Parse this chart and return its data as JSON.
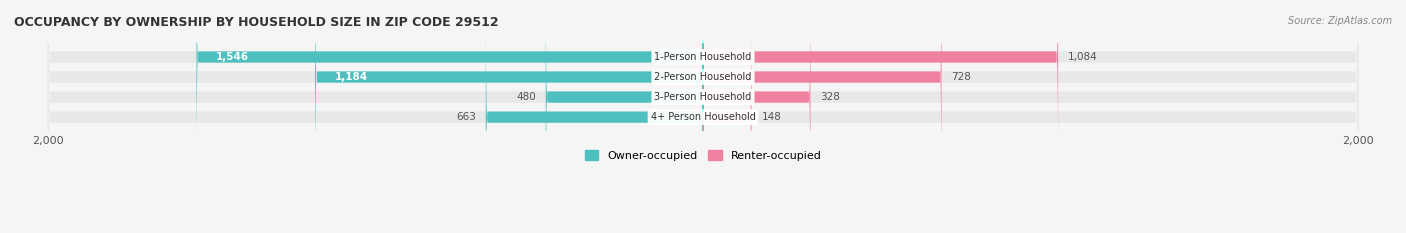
{
  "title": "OCCUPANCY BY OWNERSHIP BY HOUSEHOLD SIZE IN ZIP CODE 29512",
  "source": "Source: ZipAtlas.com",
  "categories": [
    "1-Person Household",
    "2-Person Household",
    "3-Person Household",
    "4+ Person Household"
  ],
  "owner_values": [
    1546,
    1184,
    480,
    663
  ],
  "renter_values": [
    1084,
    728,
    328,
    148
  ],
  "owner_color": "#4DBFBF",
  "renter_color": "#F080A0",
  "label_color_owner_large": "#ffffff",
  "label_color_small": "#555555",
  "axis_max": 2000,
  "bg_color": "#f5f5f5",
  "bar_bg_color": "#e8e8e8",
  "center_label_bg": "#ffffff",
  "bar_height": 0.55,
  "bar_gap": 0.12
}
